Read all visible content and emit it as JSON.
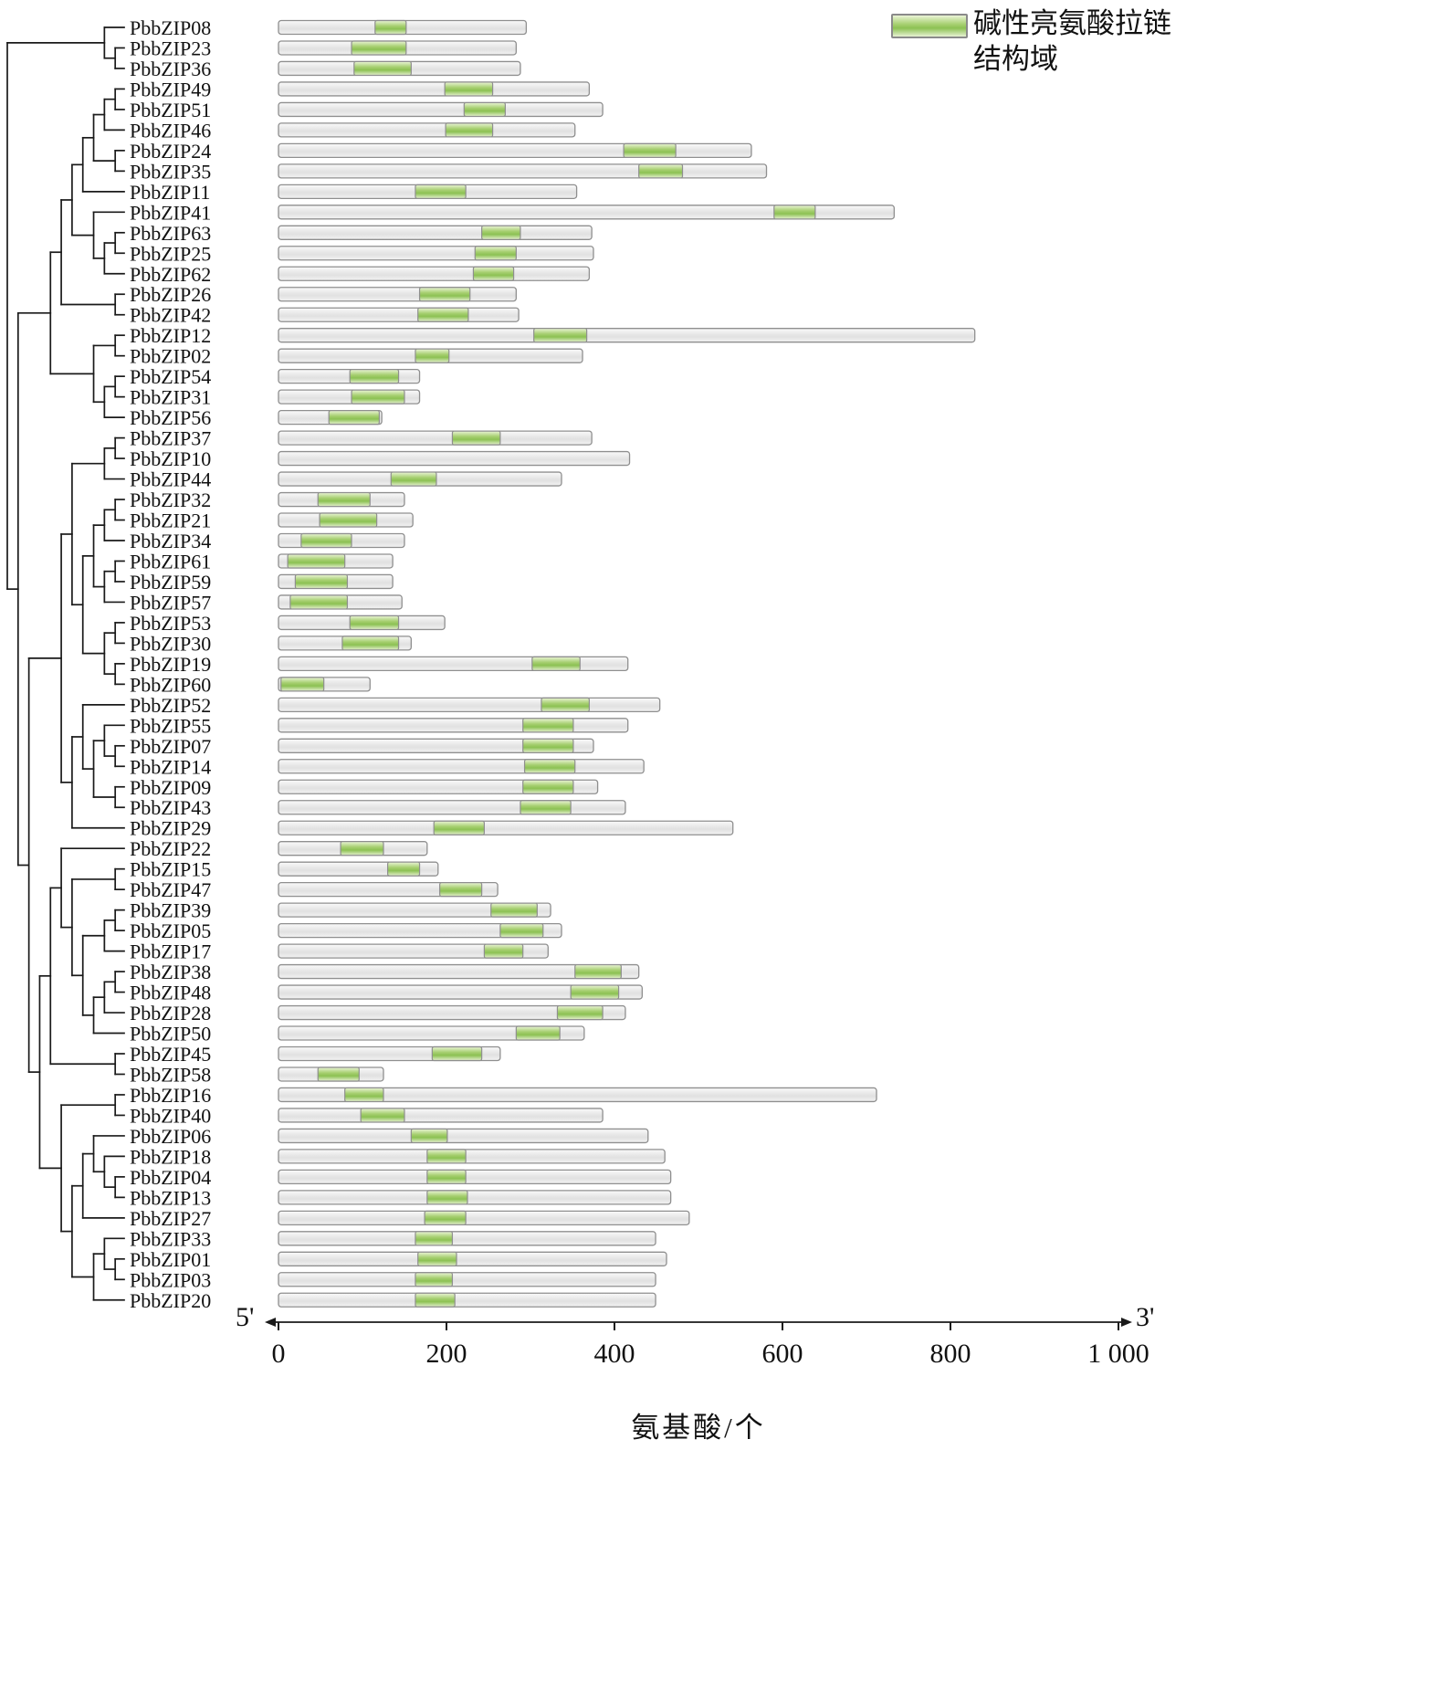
{
  "chart_data": {
    "type": "bar",
    "subtype": "protein-domain-architecture-with-phylogeny",
    "title": "",
    "xlabel": "氨基酸/个",
    "five_prime": "5'",
    "three_prime": "3'",
    "xlim": [
      0,
      1000
    ],
    "xticks": [
      0,
      200,
      400,
      600,
      800,
      1000
    ],
    "xtick_labels": [
      "0",
      "200",
      "400",
      "600",
      "800",
      "1 000"
    ],
    "legend_line1": "碱性亮氨酸拉链",
    "legend_line2": "结构域",
    "legend": [
      {
        "label": "碱性亮氨酸拉链结构域",
        "color": "#8cc153"
      }
    ],
    "colors": {
      "bar_fill_top": "#f8f8f8",
      "bar_fill_mid": "#e6e6e6",
      "bar_stroke": "#8f8f8f",
      "domain_fill": "#8cc153",
      "domain_fill_light": "#eaf4d6",
      "tree_stroke": "#1a1a1a",
      "axis_stroke": "#1a1a1a"
    },
    "rows": [
      {
        "name": "PbbZIP08",
        "length": 295,
        "domain": [
          115,
          152
        ]
      },
      {
        "name": "PbbZIP23",
        "length": 283,
        "domain": [
          87,
          152
        ]
      },
      {
        "name": "PbbZIP36",
        "length": 288,
        "domain": [
          90,
          158
        ]
      },
      {
        "name": "PbbZIP49",
        "length": 370,
        "domain": [
          198,
          255
        ]
      },
      {
        "name": "PbbZIP51",
        "length": 386,
        "domain": [
          221,
          270
        ]
      },
      {
        "name": "PbbZIP46",
        "length": 353,
        "domain": [
          199,
          255
        ]
      },
      {
        "name": "PbbZIP24",
        "length": 563,
        "domain": [
          411,
          473
        ]
      },
      {
        "name": "PbbZIP35",
        "length": 581,
        "domain": [
          429,
          481
        ]
      },
      {
        "name": "PbbZIP11",
        "length": 355,
        "domain": [
          163,
          223
        ]
      },
      {
        "name": "PbbZIP41",
        "length": 733,
        "domain": [
          590,
          639
        ]
      },
      {
        "name": "PbbZIP63",
        "length": 373,
        "domain": [
          242,
          288
        ]
      },
      {
        "name": "PbbZIP25",
        "length": 375,
        "domain": [
          234,
          283
        ]
      },
      {
        "name": "PbbZIP62",
        "length": 370,
        "domain": [
          232,
          280
        ]
      },
      {
        "name": "PbbZIP26",
        "length": 283,
        "domain": [
          168,
          228
        ]
      },
      {
        "name": "PbbZIP42",
        "length": 286,
        "domain": [
          166,
          226
        ]
      },
      {
        "name": "PbbZIP12",
        "length": 829,
        "domain": [
          304,
          367
        ]
      },
      {
        "name": "PbbZIP02",
        "length": 362,
        "domain": [
          163,
          203
        ]
      },
      {
        "name": "PbbZIP54",
        "length": 168,
        "domain": [
          85,
          143
        ]
      },
      {
        "name": "PbbZIP31",
        "length": 168,
        "domain": [
          87,
          150
        ]
      },
      {
        "name": "PbbZIP56",
        "length": 123,
        "domain": [
          60,
          120
        ]
      },
      {
        "name": "PbbZIP37",
        "length": 373,
        "domain": [
          207,
          264
        ]
      },
      {
        "name": "PbbZIP10",
        "length": 418,
        "domain": null
      },
      {
        "name": "PbbZIP44",
        "length": 337,
        "domain": [
          134,
          188
        ]
      },
      {
        "name": "PbbZIP32",
        "length": 150,
        "domain": [
          47,
          109
        ]
      },
      {
        "name": "PbbZIP21",
        "length": 160,
        "domain": [
          49,
          117
        ]
      },
      {
        "name": "PbbZIP34",
        "length": 150,
        "domain": [
          27,
          87
        ]
      },
      {
        "name": "PbbZIP61",
        "length": 136,
        "domain": [
          11,
          79
        ]
      },
      {
        "name": "PbbZIP59",
        "length": 136,
        "domain": [
          20,
          82
        ]
      },
      {
        "name": "PbbZIP57",
        "length": 147,
        "domain": [
          14,
          82
        ]
      },
      {
        "name": "PbbZIP53",
        "length": 198,
        "domain": [
          85,
          143
        ]
      },
      {
        "name": "PbbZIP30",
        "length": 158,
        "domain": [
          76,
          143
        ]
      },
      {
        "name": "PbbZIP19",
        "length": 416,
        "domain": [
          302,
          359
        ]
      },
      {
        "name": "PbbZIP60",
        "length": 109,
        "domain": [
          3,
          54
        ]
      },
      {
        "name": "PbbZIP52",
        "length": 454,
        "domain": [
          313,
          370
        ]
      },
      {
        "name": "PbbZIP55",
        "length": 416,
        "domain": [
          291,
          351
        ]
      },
      {
        "name": "PbbZIP07",
        "length": 375,
        "domain": [
          291,
          351
        ]
      },
      {
        "name": "PbbZIP14",
        "length": 435,
        "domain": [
          293,
          353
        ]
      },
      {
        "name": "PbbZIP09",
        "length": 380,
        "domain": [
          291,
          351
        ]
      },
      {
        "name": "PbbZIP43",
        "length": 413,
        "domain": [
          288,
          348
        ]
      },
      {
        "name": "PbbZIP29",
        "length": 541,
        "domain": [
          185,
          245
        ]
      },
      {
        "name": "PbbZIP22",
        "length": 177,
        "domain": [
          74,
          125
        ]
      },
      {
        "name": "PbbZIP15",
        "length": 190,
        "domain": [
          130,
          168
        ]
      },
      {
        "name": "PbbZIP47",
        "length": 261,
        "domain": [
          192,
          242
        ]
      },
      {
        "name": "PbbZIP39",
        "length": 324,
        "domain": [
          253,
          308
        ]
      },
      {
        "name": "PbbZIP05",
        "length": 337,
        "domain": [
          264,
          315
        ]
      },
      {
        "name": "PbbZIP17",
        "length": 321,
        "domain": [
          245,
          291
        ]
      },
      {
        "name": "PbbZIP38",
        "length": 429,
        "domain": [
          353,
          408
        ]
      },
      {
        "name": "PbbZIP48",
        "length": 433,
        "domain": [
          348,
          405
        ]
      },
      {
        "name": "PbbZIP28",
        "length": 413,
        "domain": [
          332,
          386
        ]
      },
      {
        "name": "PbbZIP50",
        "length": 364,
        "domain": [
          283,
          335
        ]
      },
      {
        "name": "PbbZIP45",
        "length": 264,
        "domain": [
          183,
          242
        ]
      },
      {
        "name": "PbbZIP58",
        "length": 125,
        "domain": [
          47,
          96
        ]
      },
      {
        "name": "PbbZIP16",
        "length": 712,
        "domain": [
          79,
          125
        ]
      },
      {
        "name": "PbbZIP40",
        "length": 386,
        "domain": [
          98,
          150
        ]
      },
      {
        "name": "PbbZIP06",
        "length": 440,
        "domain": [
          158,
          201
        ]
      },
      {
        "name": "PbbZIP18",
        "length": 460,
        "domain": [
          177,
          223
        ]
      },
      {
        "name": "PbbZIP04",
        "length": 467,
        "domain": [
          177,
          223
        ]
      },
      {
        "name": "PbbZIP13",
        "length": 467,
        "domain": [
          177,
          225
        ]
      },
      {
        "name": "PbbZIP27",
        "length": 489,
        "domain": [
          174,
          223
        ]
      },
      {
        "name": "PbbZIP33",
        "length": 449,
        "domain": [
          163,
          207
        ]
      },
      {
        "name": "PbbZIP01",
        "length": 462,
        "domain": [
          166,
          212
        ]
      },
      {
        "name": "PbbZIP03",
        "length": 449,
        "domain": [
          163,
          207
        ]
      },
      {
        "name": "PbbZIP20",
        "length": 449,
        "domain": [
          163,
          210
        ]
      }
    ],
    "tree": [
      [
        "PbbZIP08",
        [
          "PbbZIP23",
          "PbbZIP36"
        ]
      ],
      [
        [
          [
            [
              [
                [
                  [
                    [
                      "PbbZIP49",
                      "PbbZIP51"
                    ],
                    "PbbZIP46"
                  ],
                  [
                    "PbbZIP24",
                    "PbbZIP35"
                  ]
                ],
                "PbbZIP11"
              ],
              [
                "PbbZIP41",
                [
                  [
                    "PbbZIP63",
                    "PbbZIP25"
                  ],
                  "PbbZIP62"
                ]
              ]
            ],
            [
              "PbbZIP26",
              "PbbZIP42"
            ]
          ],
          [
            [
              [
                "PbbZIP12"
              ],
              "PbbZIP02"
            ],
            [
              [
                "PbbZIP54",
                "PbbZIP31"
              ],
              "PbbZIP56"
            ]
          ]
        ],
        [
          [
            [
              [
                [
                  "PbbZIP37",
                  "PbbZIP10"
                ],
                "PbbZIP44"
              ],
              [
                [
                  [
                    [
                      "PbbZIP32",
                      "PbbZIP21"
                    ],
                    "PbbZIP34"
                  ],
                  [
                    [
                      "PbbZIP61",
                      "PbbZIP59"
                    ],
                    "PbbZIP57"
                  ]
                ],
                [
                  [
                    "PbbZIP53",
                    "PbbZIP30"
                  ],
                  [
                    "PbbZIP19",
                    "PbbZIP60"
                  ]
                ]
              ]
            ],
            [
              [
                "PbbZIP52",
                [
                  [
                    "PbbZIP55",
                    [
                      "PbbZIP07",
                      "PbbZIP14"
                    ]
                  ],
                  [
                    "PbbZIP09",
                    "PbbZIP43"
                  ]
                ]
              ],
              "PbbZIP29"
            ]
          ],
          [
            [
              [
                "PbbZIP22",
                [
                  [
                    "PbbZIP15",
                    "PbbZIP47"
                  ],
                  [
                    [
                      [
                        "PbbZIP39",
                        "PbbZIP05"
                      ],
                      "PbbZIP17"
                    ],
                    [
                      [
                        [
                          "PbbZIP38",
                          "PbbZIP48"
                        ],
                        "PbbZIP28"
                      ],
                      "PbbZIP50"
                    ]
                  ]
                ]
              ],
              [
                "PbbZIP45",
                "PbbZIP58"
              ]
            ],
            [
              [
                "PbbZIP16",
                "PbbZIP40"
              ],
              [
                [
                  [
                    "PbbZIP06",
                    [
                      "PbbZIP18",
                      [
                        "PbbZIP04",
                        "PbbZIP13"
                      ]
                    ]
                  ],
                  "PbbZIP27"
                ],
                [
                  [
                    "PbbZIP33",
                    [
                      "PbbZIP01",
                      "PbbZIP03"
                    ]
                  ],
                  "PbbZIP20"
                ]
              ]
            ]
          ]
        ]
      ]
    ]
  }
}
